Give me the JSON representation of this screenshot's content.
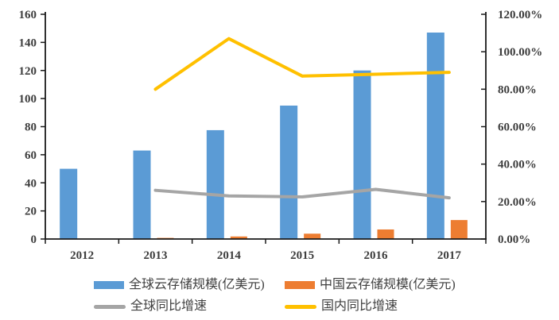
{
  "chart_data": {
    "type": "combo-bar-line",
    "title": "",
    "categories": [
      "2012",
      "2013",
      "2014",
      "2015",
      "2016",
      "2017"
    ],
    "series": [
      {
        "name": "全球云存储规模(亿美元)",
        "type": "bar",
        "axis": "left",
        "color": "#5B9BD5",
        "values": [
          50,
          63,
          77.5,
          95,
          120,
          147
        ]
      },
      {
        "name": "中国云存储规模(亿美元)",
        "type": "bar",
        "axis": "left",
        "color": "#ED7D31",
        "values": [
          0.3,
          0.8,
          1.8,
          3.8,
          6.8,
          13.5
        ]
      },
      {
        "name": "全球同比增速",
        "type": "line",
        "axis": "right",
        "color": "#A5A5A5",
        "values": [
          null,
          26,
          23,
          22.5,
          26.5,
          22
        ]
      },
      {
        "name": "国内同比增速",
        "type": "line",
        "axis": "right",
        "color": "#FFC000",
        "values": [
          null,
          80,
          107,
          87,
          88,
          89
        ]
      }
    ],
    "left_axis": {
      "min": 0,
      "max": 160,
      "step": 20,
      "tick_labels": [
        "0",
        "20",
        "40",
        "60",
        "80",
        "100",
        "120",
        "140",
        "160"
      ]
    },
    "right_axis": {
      "min": 0,
      "max": 120,
      "step": 20,
      "tick_labels": [
        "0.00%",
        "20.00%",
        "40.00%",
        "60.00%",
        "80.00%",
        "100.00%",
        "120.00%"
      ]
    },
    "legend_position": "bottom",
    "grid": false,
    "axis_color": "#1a1a1a",
    "label_color": "#3d3d3d"
  }
}
